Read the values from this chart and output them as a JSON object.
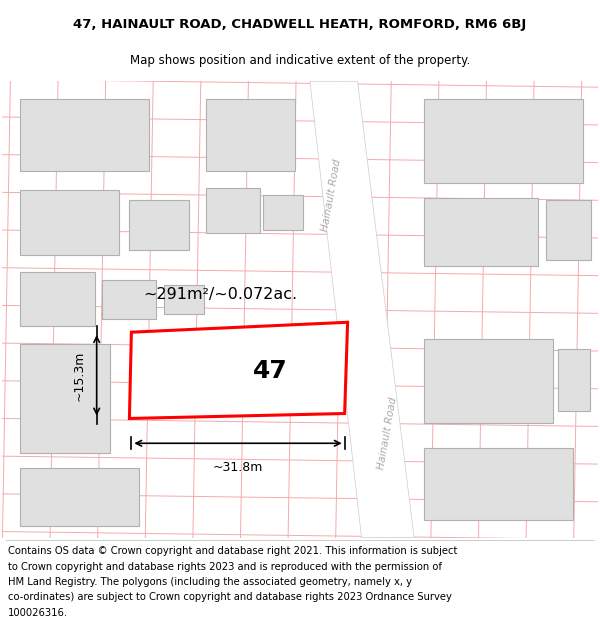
{
  "title_line1": "47, HAINAULT ROAD, CHADWELL HEATH, ROMFORD, RM6 6BJ",
  "title_line2": "Map shows position and indicative extent of the property.",
  "area_label": "~291m²/~0.072ac.",
  "number_label": "47",
  "dim_width": "~31.8m",
  "dim_height": "~15.3m",
  "road_label_top": "Hainault Road",
  "road_label_bot": "Hainault Road",
  "map_bg": "#f2f2f2",
  "building_fill": "#e0e0e0",
  "building_stroke": "#b0b0b0",
  "road_fill": "#ffffff",
  "highlight_stroke": "#ff0000",
  "highlight_fill": "#ffffff",
  "grid_line_color": "#f5aaaa",
  "title_fontsize": 9.5,
  "subtitle_fontsize": 8.5,
  "footer_fontsize": 7.2,
  "footer_lines": [
    "Contains OS data © Crown copyright and database right 2021. This information is subject",
    "to Crown copyright and database rights 2023 and is reproduced with the permission of",
    "HM Land Registry. The polygons (including the associated geometry, namely x, y",
    "co-ordinates) are subject to Crown copyright and database rights 2023 Ordnance Survey",
    "100026316."
  ]
}
